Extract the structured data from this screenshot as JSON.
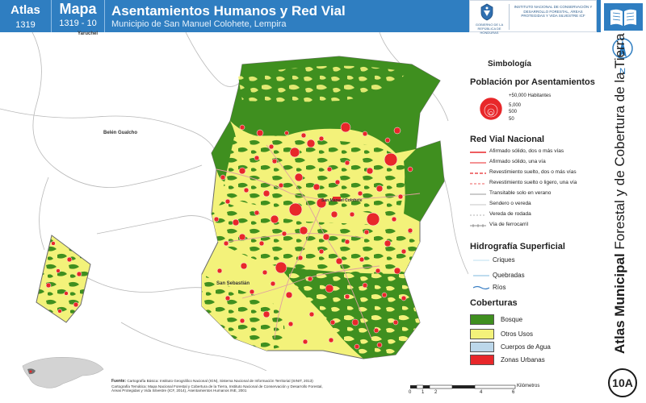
{
  "header": {
    "atlas_label": "Atlas",
    "atlas_number": "1319",
    "mapa_label": "Mapa",
    "mapa_number": "1319 - 10",
    "title": "Asentamientos Humanos y Red Vial",
    "subtitle": "Municipio de San Manuel Colohete, Lempira",
    "logo_left_text": "GOBIERNO DE LA REPÚBLICA DE HONDURAS",
    "logo_right_text": "INSTITUTO NACIONAL DE CONSERVACIÓN Y DESARROLLO FORESTAL, ÁREAS PROTEGIDAS Y VIDA SILVESTRE ICF"
  },
  "side": {
    "north_label": "N",
    "vertical_bold": "Atlas Municipal",
    "vertical_rest": " Forestal y de Cobertura de la Tierra",
    "badge": "10A"
  },
  "map": {
    "places": {
      "yaruchel": "Yaruchel",
      "belen": "Belén Gualcho",
      "san_sebastian": "San Sebastián",
      "cabecera": "San Manuel Colohete"
    }
  },
  "legend": {
    "title": "Simbología",
    "poblacion_title": "Población por Asentamientos",
    "poblacion_sizes": [
      "+50,000 Habitantes",
      "5,000",
      "500",
      "50"
    ],
    "red_vial_title": "Red Vial Nacional",
    "red_vial_items": [
      "Afirmado sólido, dos o más vías",
      "Afirmado sólido, una vía",
      "Revestimiento suelto, dos o más vías",
      "Revestimiento suelto o ligero, una vía",
      "Transitable solo en verano",
      "Sendero o vereda",
      "Vereda de rodada",
      "Vía de ferrocarril"
    ],
    "hidrografia_title": "Hidrografía Superficial",
    "hidrografia_items": [
      "Criques",
      "Quebradas",
      "Ríos"
    ],
    "coberturas_title": "Coberturas",
    "coberturas_items": [
      {
        "label": "Bosque",
        "color": "#3f8f1f"
      },
      {
        "label": "Otros Usos",
        "color": "#f3f27a"
      },
      {
        "label": "Cuerpos de Agua",
        "color": "#bcd7ea"
      },
      {
        "label": "Zonas Urbanas",
        "color": "#e8272a"
      }
    ]
  },
  "footer": {
    "fuente_label": "Fuente:",
    "fuente_line1": "Cartografía Básica: Instituto Geográfico Nacional (IGN), Sistema Nacional de Información Territorial (SINIT, 2013)",
    "fuente_line2": "Cartografía Temática: Mapa Nacional Forestal y Cobertura de la Tierra, Instituto Nacional de Conservación y Desarrollo Forestal,",
    "fuente_line3": "Áreas Protegidas y Vida Silvestre (ICF, 2014), Asentamientos Humanos INE, 2001",
    "scale_unit": "Kilómetros",
    "scale_ticks": [
      "0",
      "1",
      "2",
      "4",
      "6"
    ]
  }
}
